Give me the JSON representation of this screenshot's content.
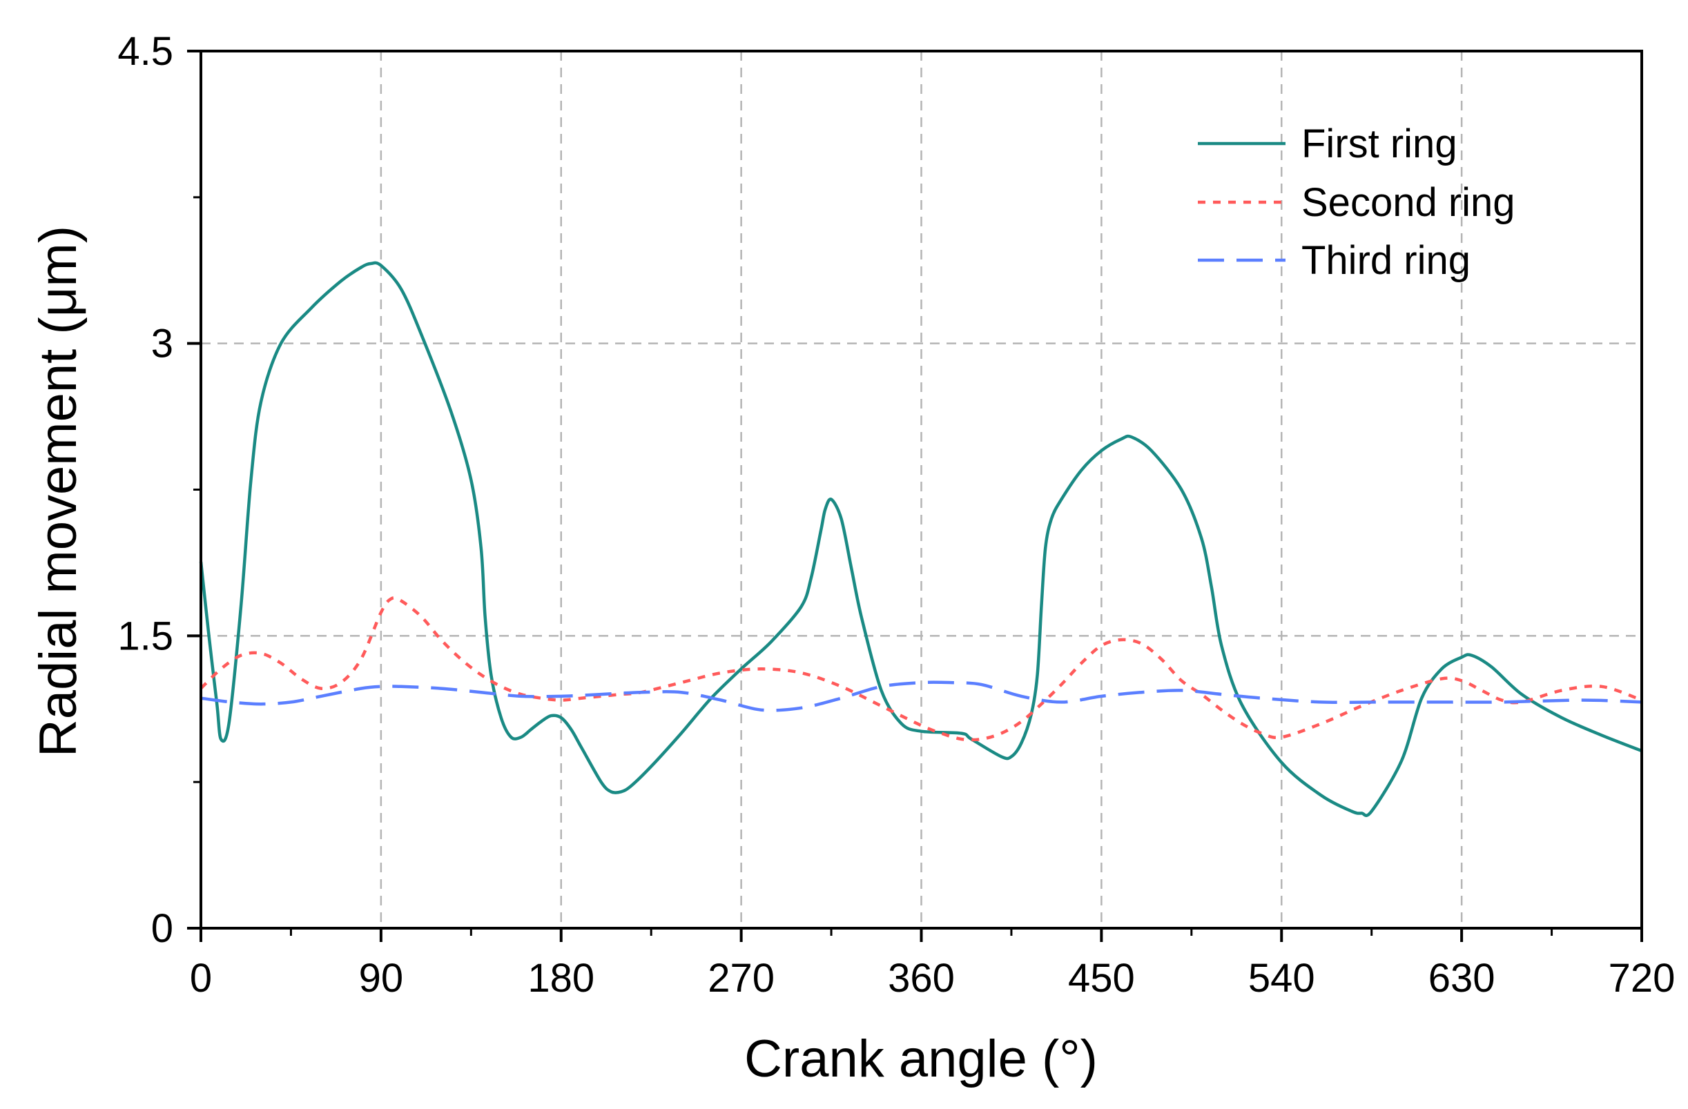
{
  "chart_data": {
    "type": "line",
    "title": "",
    "xlabel": "Crank angle (°)",
    "ylabel": "Radial movement (μm)",
    "xlim": [
      0,
      720
    ],
    "ylim": [
      0,
      4.5
    ],
    "xticks": [
      0,
      90,
      180,
      270,
      360,
      450,
      540,
      630,
      720
    ],
    "xtick_labels": [
      "0",
      "90",
      "180",
      "270",
      "360",
      "450",
      "540",
      "630",
      "720"
    ],
    "yticks": [
      0,
      1.5,
      3,
      4.5
    ],
    "ytick_labels": [
      "0",
      "1.5",
      "3",
      "4.5"
    ],
    "grid": true,
    "legend_position": "top-right",
    "series": [
      {
        "name": "First ring",
        "color": "#1a8a84",
        "style": "solid",
        "x": [
          0,
          4,
          8,
          10,
          14,
          20,
          25,
          30,
          40,
          55,
          70,
          80,
          85,
          90,
          100,
          110,
          125,
          135,
          140,
          142,
          145,
          150,
          155,
          160,
          165,
          170,
          175,
          180,
          185,
          190,
          200,
          205,
          210,
          215,
          225,
          240,
          255,
          270,
          285,
          300,
          305,
          310,
          312,
          315,
          320,
          325,
          330,
          340,
          350,
          360,
          380,
          385,
          400,
          405,
          410,
          415,
          418,
          420,
          422,
          425,
          430,
          440,
          450,
          460,
          465,
          475,
          490,
          500,
          505,
          510,
          520,
          540,
          560,
          575,
          580,
          585,
          600,
          610,
          620,
          630,
          635,
          645,
          660,
          680,
          700,
          720
        ],
        "y": [
          1.88,
          1.5,
          1.15,
          0.97,
          1.05,
          1.65,
          2.3,
          2.7,
          3.0,
          3.18,
          3.32,
          3.39,
          3.41,
          3.4,
          3.28,
          3.05,
          2.65,
          2.3,
          1.95,
          1.6,
          1.3,
          1.08,
          0.98,
          0.98,
          1.02,
          1.06,
          1.09,
          1.08,
          1.02,
          0.93,
          0.75,
          0.7,
          0.7,
          0.73,
          0.83,
          1.0,
          1.18,
          1.33,
          1.47,
          1.65,
          1.8,
          2.05,
          2.15,
          2.2,
          2.1,
          1.85,
          1.6,
          1.22,
          1.05,
          1.01,
          1.0,
          0.97,
          0.88,
          0.88,
          0.95,
          1.1,
          1.3,
          1.65,
          1.95,
          2.1,
          2.2,
          2.35,
          2.45,
          2.51,
          2.52,
          2.45,
          2.25,
          2.0,
          1.75,
          1.45,
          1.15,
          0.85,
          0.68,
          0.6,
          0.59,
          0.6,
          0.86,
          1.18,
          1.33,
          1.39,
          1.4,
          1.34,
          1.2,
          1.08,
          0.99,
          0.91
        ]
      },
      {
        "name": "Second ring",
        "color": "#ff5a5a",
        "style": "dotted",
        "x": [
          0,
          10,
          20,
          30,
          40,
          50,
          60,
          70,
          80,
          90,
          95,
          100,
          110,
          120,
          130,
          140,
          150,
          160,
          170,
          180,
          190,
          200,
          210,
          220,
          240,
          260,
          280,
          300,
          320,
          340,
          360,
          370,
          380,
          390,
          400,
          410,
          420,
          430,
          440,
          450,
          460,
          470,
          480,
          490,
          500,
          510,
          520,
          530,
          540,
          560,
          580,
          600,
          620,
          630,
          640,
          650,
          660,
          680,
          700,
          720
        ],
        "y": [
          1.23,
          1.33,
          1.4,
          1.41,
          1.36,
          1.28,
          1.23,
          1.26,
          1.38,
          1.62,
          1.69,
          1.68,
          1.6,
          1.48,
          1.38,
          1.3,
          1.24,
          1.2,
          1.18,
          1.17,
          1.18,
          1.19,
          1.2,
          1.21,
          1.26,
          1.31,
          1.33,
          1.31,
          1.24,
          1.14,
          1.04,
          1.0,
          0.97,
          0.97,
          1.0,
          1.06,
          1.15,
          1.25,
          1.36,
          1.45,
          1.48,
          1.46,
          1.38,
          1.27,
          1.2,
          1.12,
          1.05,
          1.0,
          0.98,
          1.05,
          1.14,
          1.22,
          1.28,
          1.27,
          1.22,
          1.17,
          1.16,
          1.22,
          1.24,
          1.17
        ]
      },
      {
        "name": "Third ring",
        "color": "#5b7fff",
        "style": "dashed",
        "x": [
          0,
          15,
          30,
          45,
          60,
          80,
          90,
          100,
          120,
          140,
          160,
          180,
          200,
          220,
          240,
          260,
          280,
          300,
          320,
          340,
          360,
          375,
          390,
          410,
          430,
          450,
          470,
          490,
          510,
          530,
          560,
          590,
          620,
          650,
          690,
          720
        ],
        "y": [
          1.18,
          1.16,
          1.15,
          1.16,
          1.19,
          1.23,
          1.24,
          1.24,
          1.23,
          1.21,
          1.19,
          1.19,
          1.2,
          1.21,
          1.21,
          1.17,
          1.12,
          1.13,
          1.18,
          1.24,
          1.26,
          1.26,
          1.25,
          1.19,
          1.16,
          1.19,
          1.21,
          1.22,
          1.2,
          1.18,
          1.16,
          1.16,
          1.16,
          1.16,
          1.17,
          1.16
        ]
      }
    ]
  }
}
